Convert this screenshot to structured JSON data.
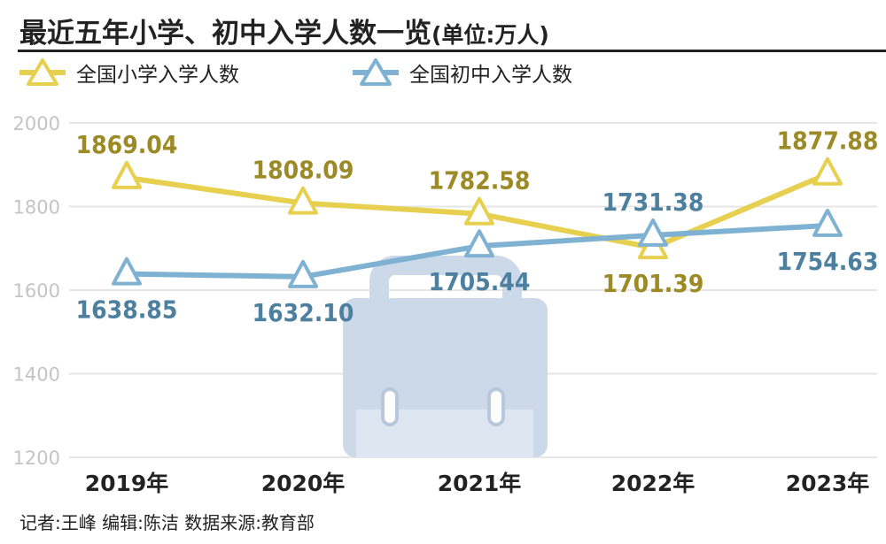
{
  "header": {
    "title": "最近五年小学、初中入学人数一览",
    "unit": "(单位:万人)"
  },
  "legend": {
    "primary": "全国小学入学人数",
    "junior": "全国初中入学人数"
  },
  "footer": {
    "credits": "记者:王峰  编辑:陈洁  数据来源:教育部"
  },
  "colors": {
    "primary_line": "#e7cf4f",
    "primary_label": "#9b8a26",
    "junior_line": "#7fb2d2",
    "junior_label": "#4d7f9f",
    "grid": "#e6e6e6",
    "axis_text": "#c4c4c4",
    "watermark": "#ccd9e9"
  },
  "chart_data": {
    "type": "line",
    "categories": [
      "2019年",
      "2020年",
      "2021年",
      "2022年",
      "2023年"
    ],
    "series": [
      {
        "name": "全国小学入学人数",
        "values": [
          1869.04,
          1808.09,
          1782.58,
          1701.39,
          1877.88
        ]
      },
      {
        "name": "全国初中入学人数",
        "values": [
          1638.85,
          1632.1,
          1705.44,
          1731.38,
          1754.63
        ]
      }
    ],
    "ylim": [
      1200,
      2000
    ],
    "yticks": [
      2000,
      1800,
      1600,
      1400,
      1200
    ],
    "grid": true,
    "legend_position": "top-left",
    "marker": "triangle"
  }
}
